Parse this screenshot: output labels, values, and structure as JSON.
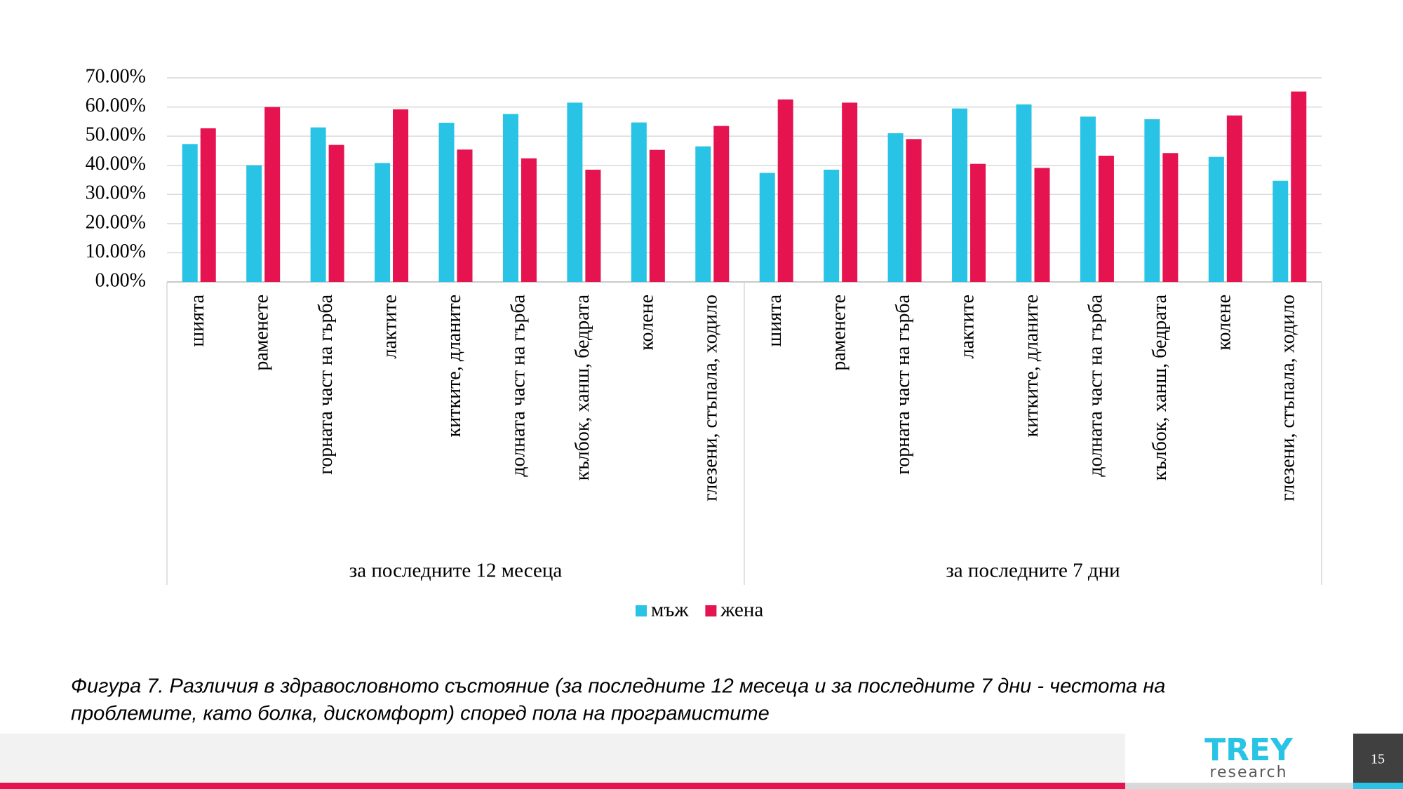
{
  "chart_data": {
    "type": "bar",
    "category_groups": [
      {
        "name": "за последните 12 месеца",
        "categories": [
          "шията",
          "раменете",
          "горната част на гърба",
          "лактите",
          "китките, дланите",
          "долната част на гърба",
          "кълбок, ханш, бедрата",
          "колене",
          "глезени, стъпала, ходило"
        ]
      },
      {
        "name": "за последните 7 дни",
        "categories": [
          "шията",
          "раменете",
          "горната част на гърба",
          "лактите",
          "китките, дланите",
          "долната част на гърба",
          "кълбок, ханш, бедрата",
          "колене",
          "глезени, стъпала, ходило"
        ]
      }
    ],
    "series": [
      {
        "name": "мъж",
        "color": "#29c3e5",
        "values": [
          47.3,
          40.0,
          53.0,
          40.8,
          54.6,
          57.6,
          61.5,
          54.7,
          46.5,
          37.4,
          38.5,
          51.0,
          59.5,
          60.9,
          56.7,
          55.8,
          42.9,
          34.7
        ]
      },
      {
        "name": "жена",
        "color": "#e5134f",
        "values": [
          52.7,
          60.0,
          47.0,
          59.2,
          45.4,
          42.4,
          38.5,
          45.3,
          53.5,
          62.6,
          61.5,
          49.0,
          40.5,
          39.1,
          43.3,
          44.2,
          57.1,
          65.3
        ]
      }
    ],
    "ylim": [
      0,
      70
    ],
    "yticks": [
      {
        "value": 0,
        "label": "0.00%"
      },
      {
        "value": 10,
        "label": "10.00%"
      },
      {
        "value": 20,
        "label": "20.00%"
      },
      {
        "value": 30,
        "label": "30.00%"
      },
      {
        "value": 40,
        "label": "40.00%"
      },
      {
        "value": 50,
        "label": "50.00%"
      },
      {
        "value": 60,
        "label": "60.00%"
      },
      {
        "value": 70,
        "label": "70.00%"
      }
    ],
    "grid": true,
    "legend": "bottom"
  },
  "caption_lines": [
    "Фигура 7. Различия в здравословното състояние (за последните 12 месеца и за последните 7 дни - честота на",
    "проблемите, като болка, дискомфорт) според пола на програмистите"
  ],
  "footer": {
    "logo_top": "TREY",
    "logo_bottom": "research",
    "page_number": "15"
  }
}
